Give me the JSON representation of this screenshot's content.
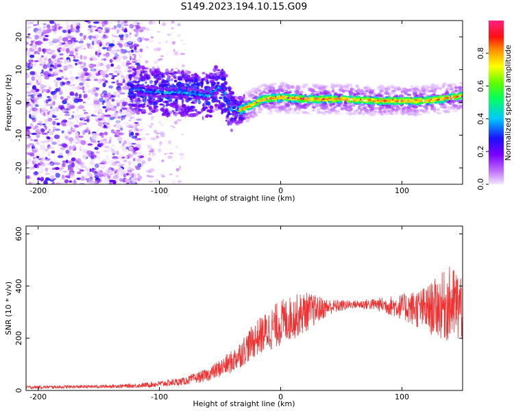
{
  "title": "S149.2023.194.10.15.G09",
  "colors": {
    "snr_line": "#f03030",
    "axis": "#000000",
    "scatter_purple": "#8a2be2"
  },
  "chart_data": [
    {
      "type": "heatmap",
      "xlabel": "Height of straight line (km)",
      "ylabel": "Frequency (Hz)",
      "xlim": [
        -210,
        150
      ],
      "ylim": [
        -25,
        25
      ],
      "x_ticks": [
        -200,
        -100,
        0,
        100
      ],
      "y_ticks": [
        -20,
        -10,
        0,
        10,
        20
      ],
      "colorbar": {
        "label": "Normalized spectral amplitude",
        "range": [
          0.0,
          1.0
        ],
        "ticks": [
          "0.0",
          "0.2",
          "0.4",
          "0.6",
          "0.8"
        ],
        "tick_values": [
          0.0,
          0.2,
          0.4,
          0.6,
          0.8
        ]
      },
      "ridge": [
        {
          "x": -120,
          "y": 4
        },
        {
          "x": -100,
          "y": 3
        },
        {
          "x": -80,
          "y": 3
        },
        {
          "x": -60,
          "y": 2
        },
        {
          "x": -50,
          "y": 5
        },
        {
          "x": -40,
          "y": -2
        },
        {
          "x": -35,
          "y": -2.5
        },
        {
          "x": -25,
          "y": -1
        },
        {
          "x": -15,
          "y": 1
        },
        {
          "x": 0,
          "y": 1.5
        },
        {
          "x": 20,
          "y": 1
        },
        {
          "x": 50,
          "y": 1
        },
        {
          "x": 80,
          "y": 0.5
        },
        {
          "x": 100,
          "y": 0.5
        },
        {
          "x": 120,
          "y": 0.5
        },
        {
          "x": 140,
          "y": 1.5
        },
        {
          "x": 150,
          "y": 2
        }
      ]
    },
    {
      "type": "line",
      "xlabel": "Height of straight line (km)",
      "ylabel": "SNR (10 * v/v)",
      "xlim": [
        -210,
        150
      ],
      "ylim": [
        0,
        630
      ],
      "x_ticks": [
        -200,
        -100,
        0,
        100
      ],
      "y_ticks": [
        0,
        200,
        400,
        600
      ],
      "envelope": [
        {
          "x": -210,
          "mean": 12,
          "spread": 6
        },
        {
          "x": -150,
          "mean": 15,
          "spread": 6
        },
        {
          "x": -120,
          "mean": 18,
          "spread": 8
        },
        {
          "x": -100,
          "mean": 25,
          "spread": 12
        },
        {
          "x": -80,
          "mean": 35,
          "spread": 15
        },
        {
          "x": -60,
          "mean": 60,
          "spread": 25
        },
        {
          "x": -40,
          "mean": 110,
          "spread": 45
        },
        {
          "x": -20,
          "mean": 200,
          "spread": 70
        },
        {
          "x": 0,
          "mean": 260,
          "spread": 90
        },
        {
          "x": 20,
          "mean": 300,
          "spread": 80
        },
        {
          "x": 40,
          "mean": 320,
          "spread": 30
        },
        {
          "x": 60,
          "mean": 330,
          "spread": 15
        },
        {
          "x": 80,
          "mean": 330,
          "spread": 25
        },
        {
          "x": 100,
          "mean": 320,
          "spread": 50
        },
        {
          "x": 120,
          "mean": 310,
          "spread": 90
        },
        {
          "x": 140,
          "mean": 330,
          "spread": 150
        },
        {
          "x": 150,
          "mean": 320,
          "spread": 140
        }
      ]
    }
  ]
}
